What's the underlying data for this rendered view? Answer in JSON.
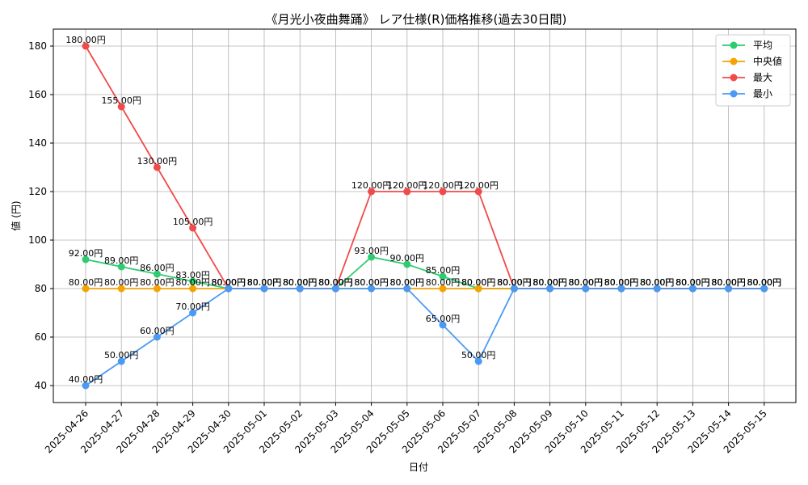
{
  "chart_data": {
    "type": "line",
    "title": "《月光小夜曲舞踊》 レア仕様(R)価格推移(過去30日間)",
    "xlabel": "日付",
    "ylabel": "値 (円)",
    "ylim": [
      33,
      187
    ],
    "yticks": [
      40,
      60,
      80,
      100,
      120,
      140,
      160,
      180
    ],
    "grid": true,
    "legend_position": "top-right",
    "value_suffix": "円",
    "categories": [
      "2025-04-26",
      "2025-04-27",
      "2025-04-28",
      "2025-04-29",
      "2025-04-30",
      "2025-05-01",
      "2025-05-02",
      "2025-05-03",
      "2025-05-04",
      "2025-05-05",
      "2025-05-06",
      "2025-05-07",
      "2025-05-08",
      "2025-05-09",
      "2025-05-10",
      "2025-05-11",
      "2025-05-12",
      "2025-05-13",
      "2025-05-14",
      "2025-05-15"
    ],
    "series": [
      {
        "name": "平均",
        "color": "#2ecc71",
        "values": [
          92,
          89,
          86,
          83,
          80,
          80,
          80,
          80,
          93,
          90,
          85,
          80,
          80,
          80,
          80,
          80,
          80,
          80,
          80,
          80
        ]
      },
      {
        "name": "中央値",
        "color": "#f5a300",
        "values": [
          80,
          80,
          80,
          80,
          80,
          80,
          80,
          80,
          80,
          80,
          80,
          80,
          80,
          80,
          80,
          80,
          80,
          80,
          80,
          80
        ]
      },
      {
        "name": "最大",
        "color": "#f04a4a",
        "values": [
          180,
          155,
          130,
          105,
          80,
          80,
          80,
          80,
          120,
          120,
          120,
          120,
          80,
          80,
          80,
          80,
          80,
          80,
          80,
          80
        ]
      },
      {
        "name": "最小",
        "color": "#4a9af5",
        "values": [
          40,
          50,
          60,
          70,
          80,
          80,
          80,
          80,
          80,
          80,
          65,
          50,
          80,
          80,
          80,
          80,
          80,
          80,
          80,
          80
        ]
      }
    ]
  }
}
